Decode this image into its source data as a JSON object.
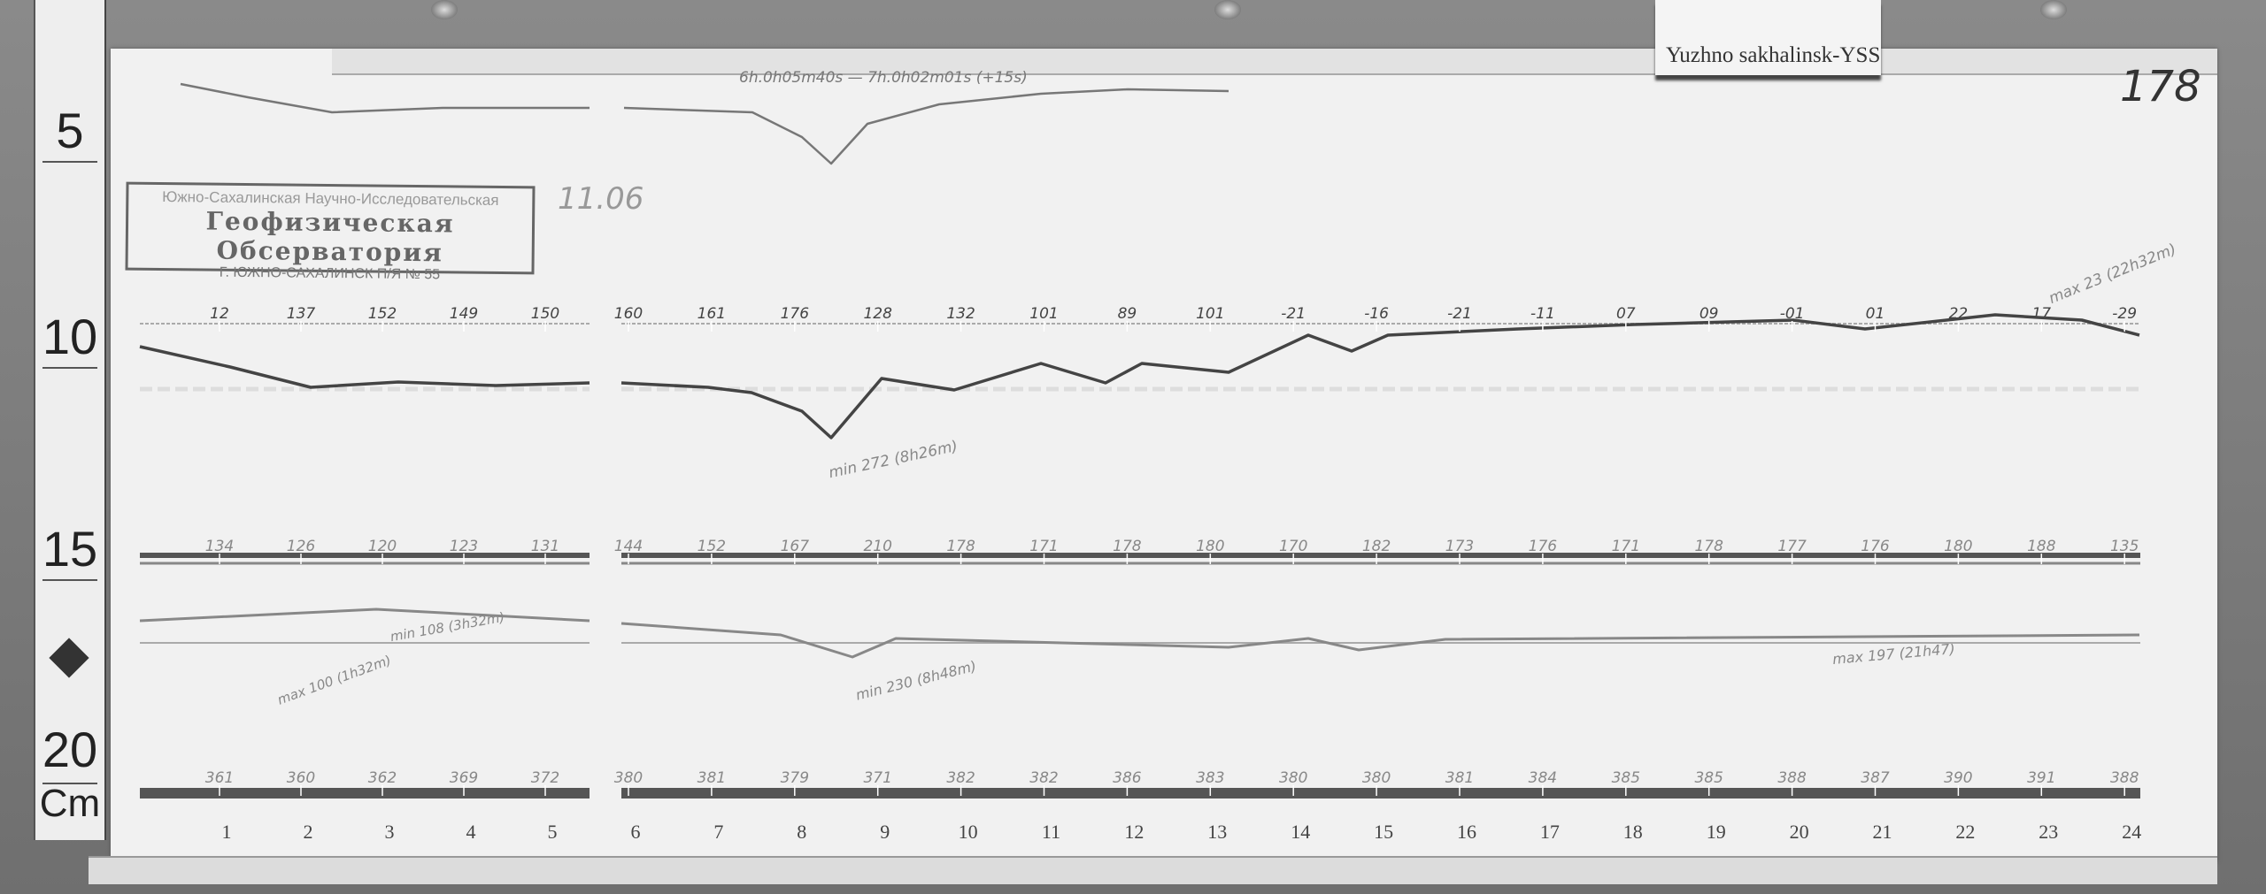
{
  "label_card": "Yuzhno sakhalinsk-YSS",
  "sheet_number": "178",
  "date_note": "11.06",
  "stamp": {
    "line1": "Южно-Сахалинская Научно-Исследовательская",
    "line2": "Геофизическая Обсерватория",
    "line3": "Г. ЮЖНО-САХАЛИНСК П/Я № 55"
  },
  "time_note": "6h.0h05m40s — 7h.0h02m01s (+15s)",
  "ruler": {
    "labels": [
      "5",
      "10",
      "15",
      "20"
    ],
    "unit": "Cm"
  },
  "hours": [
    "1",
    "2",
    "3",
    "4",
    "5",
    "6",
    "7",
    "8",
    "9",
    "10",
    "11",
    "12",
    "13",
    "14",
    "15",
    "16",
    "17",
    "18",
    "19",
    "20",
    "21",
    "22",
    "23",
    "24"
  ],
  "row_values": {
    "row1": [
      "12",
      "137",
      "152",
      "149",
      "150",
      "160",
      "161",
      "176",
      "128",
      "132",
      "101",
      "89",
      "101",
      "-21",
      "-16",
      "-21",
      "-11",
      "07",
      "09",
      "-01",
      "01",
      "22",
      "17",
      "-29"
    ],
    "row2": [
      "134",
      "126",
      "120",
      "123",
      "131",
      "144",
      "152",
      "167",
      "210",
      "178",
      "171",
      "178",
      "180",
      "170",
      "182",
      "173",
      "176",
      "171",
      "178",
      "177",
      "176",
      "180",
      "188",
      "135"
    ],
    "row3": [
      "361",
      "360",
      "362",
      "369",
      "372",
      "380",
      "381",
      "379",
      "371",
      "382",
      "382",
      "386",
      "383",
      "380",
      "380",
      "381",
      "384",
      "385",
      "385",
      "388",
      "387",
      "390",
      "391",
      "388"
    ]
  },
  "annotations": {
    "trace_max": "max 23 (22h32m)",
    "trace_min": "min 272 (8h26m)",
    "z_min": "min 230 (8h48m)",
    "z_max": "max 197 (21h47)",
    "left_note1": "min 108 (3h32m)",
    "left_note2": "max 100 (1h32m)"
  },
  "colors": {
    "paper": "#f1f1f1",
    "trace": "#444444",
    "board": "#7a7a7a"
  }
}
